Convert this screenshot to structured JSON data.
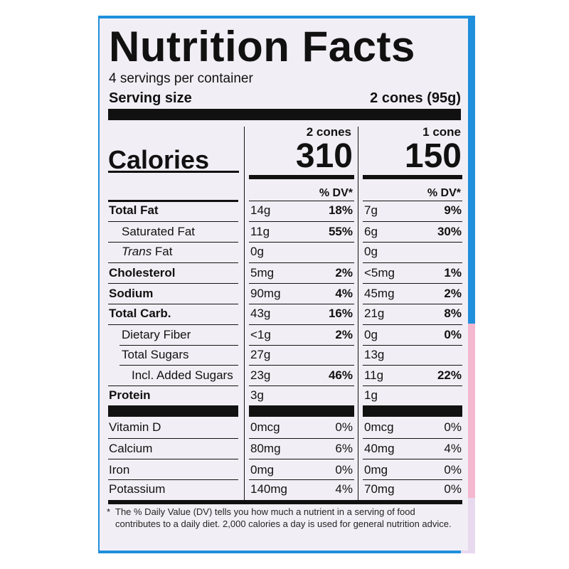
{
  "title": "Nutrition Facts",
  "servings_per_container": "4 servings per container",
  "serving_size_label": "Serving size",
  "serving_size_value": "2 cones (95g)",
  "calories_label": "Calories",
  "columns": [
    {
      "header": "2 cones",
      "calories": "310",
      "dv_header": "% DV*"
    },
    {
      "header": "1 cone",
      "calories": "150",
      "dv_header": "% DV*"
    }
  ],
  "nutrients": [
    {
      "name": "Total Fat",
      "c1_amount": "14g",
      "c1_dv": "18%",
      "c2_amount": "7g",
      "c2_dv": "9%"
    },
    {
      "name": "Saturated Fat",
      "c1_amount": "11g",
      "c1_dv": "55%",
      "c2_amount": "6g",
      "c2_dv": "30%"
    },
    {
      "name_italic": "Trans",
      "name": " Fat",
      "c1_amount": "0g",
      "c1_dv": "",
      "c2_amount": "0g",
      "c2_dv": ""
    },
    {
      "name": "Cholesterol",
      "c1_amount": "5mg",
      "c1_dv": "2%",
      "c2_amount": "<5mg",
      "c2_dv": "1%"
    },
    {
      "name": "Sodium",
      "c1_amount": "90mg",
      "c1_dv": "4%",
      "c2_amount": "45mg",
      "c2_dv": "2%"
    },
    {
      "name": "Total Carb.",
      "c1_amount": "43g",
      "c1_dv": "16%",
      "c2_amount": "21g",
      "c2_dv": "8%"
    },
    {
      "name": "Dietary Fiber",
      "c1_amount": "<1g",
      "c1_dv": "2%",
      "c2_amount": "0g",
      "c2_dv": "0%"
    },
    {
      "name": "Total Sugars",
      "c1_amount": "27g",
      "c1_dv": "",
      "c2_amount": "13g",
      "c2_dv": ""
    },
    {
      "name": "Incl. Added Sugars",
      "c1_amount": "23g",
      "c1_dv": "46%",
      "c2_amount": "11g",
      "c2_dv": "22%"
    },
    {
      "name": "Protein",
      "c1_amount": "3g",
      "c1_dv": "",
      "c2_amount": "1g",
      "c2_dv": ""
    }
  ],
  "micronutrients": [
    {
      "name": "Vitamin D",
      "c1_amount": "0mcg",
      "c1_dv": "0%",
      "c2_amount": "0mcg",
      "c2_dv": "0%"
    },
    {
      "name": "Calcium",
      "c1_amount": "80mg",
      "c1_dv": "6%",
      "c2_amount": "40mg",
      "c2_dv": "4%"
    },
    {
      "name": "Iron",
      "c1_amount": "0mg",
      "c1_dv": "0%",
      "c2_amount": "0mg",
      "c2_dv": "0%"
    },
    {
      "name": "Potassium",
      "c1_amount": "140mg",
      "c1_dv": "4%",
      "c2_amount": "70mg",
      "c2_dv": "0%"
    }
  ],
  "footnote_star": "*",
  "footnote": "The % Daily Value (DV) tells you how much a nutrient in a serving of food contributes to a daily diet. 2,000 calories a day is used for general nutrition advice.",
  "colors": {
    "package_blue": "#1f8fdc",
    "label_bg": "#f1eff5",
    "ink": "#111111"
  }
}
